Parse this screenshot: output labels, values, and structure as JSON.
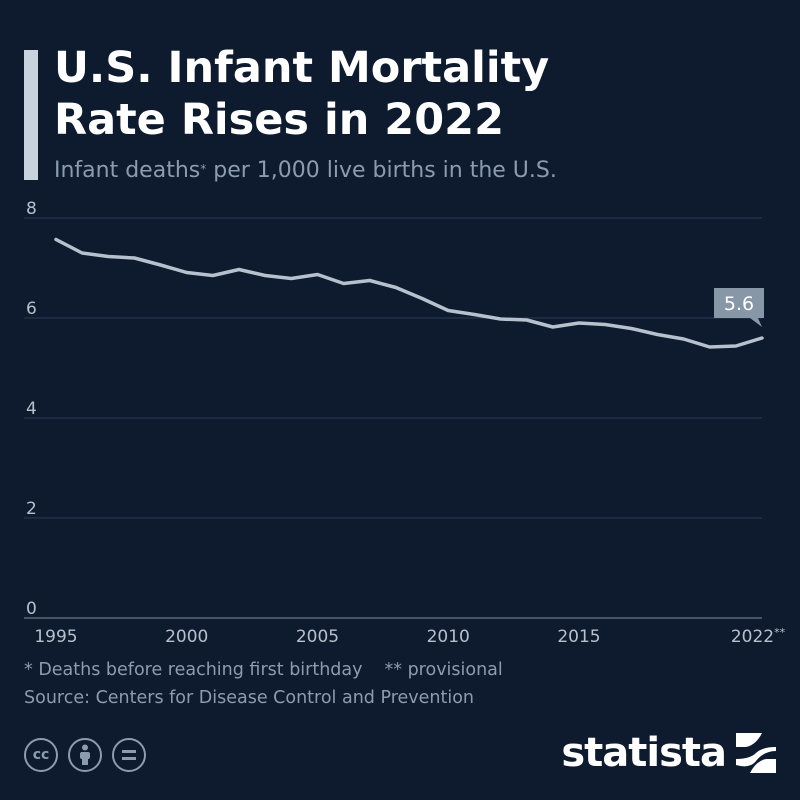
{
  "header": {
    "title_line1": "U.S. Infant Mortality",
    "title_line2": "Rate Rises in 2022",
    "subtitle_pre": "Infant deaths",
    "subtitle_sup": "*",
    "subtitle_post": " per 1,000 live births in the U.S."
  },
  "chart_data": {
    "type": "line",
    "x": [
      1995,
      1996,
      1997,
      1998,
      1999,
      2000,
      2001,
      2002,
      2003,
      2004,
      2005,
      2006,
      2007,
      2008,
      2009,
      2010,
      2011,
      2012,
      2013,
      2014,
      2015,
      2016,
      2017,
      2018,
      2019,
      2020,
      2021,
      2022
    ],
    "series": [
      {
        "values": [
          7.57,
          7.3,
          7.23,
          7.2,
          7.06,
          6.91,
          6.85,
          6.97,
          6.85,
          6.79,
          6.87,
          6.69,
          6.75,
          6.61,
          6.39,
          6.15,
          6.07,
          5.98,
          5.96,
          5.82,
          5.9,
          5.87,
          5.79,
          5.67,
          5.58,
          5.42,
          5.44,
          5.6
        ]
      }
    ],
    "x_tick_labels": [
      "1995",
      "2000",
      "2005",
      "2010",
      "2015",
      "2022**"
    ],
    "y_ticks": [
      0,
      2,
      4,
      6,
      8
    ],
    "ylim": [
      0,
      8
    ],
    "xlim": [
      1995,
      2022
    ],
    "grid": true,
    "annotation": {
      "x": 2022,
      "label": "5.6"
    },
    "colors": {
      "line": "#b5c1cc",
      "grid": "#2c3a52",
      "label_bg": "#8797a8",
      "text": "#b5c1cc"
    }
  },
  "footer": {
    "note1": "* Deaths before reaching first birthday",
    "note2": "** provisional",
    "source": "Source: Centers for Disease Control and Prevention",
    "brand": "statista",
    "license_icons": [
      "cc-icon",
      "attribution-icon",
      "no-derivatives-icon"
    ]
  }
}
